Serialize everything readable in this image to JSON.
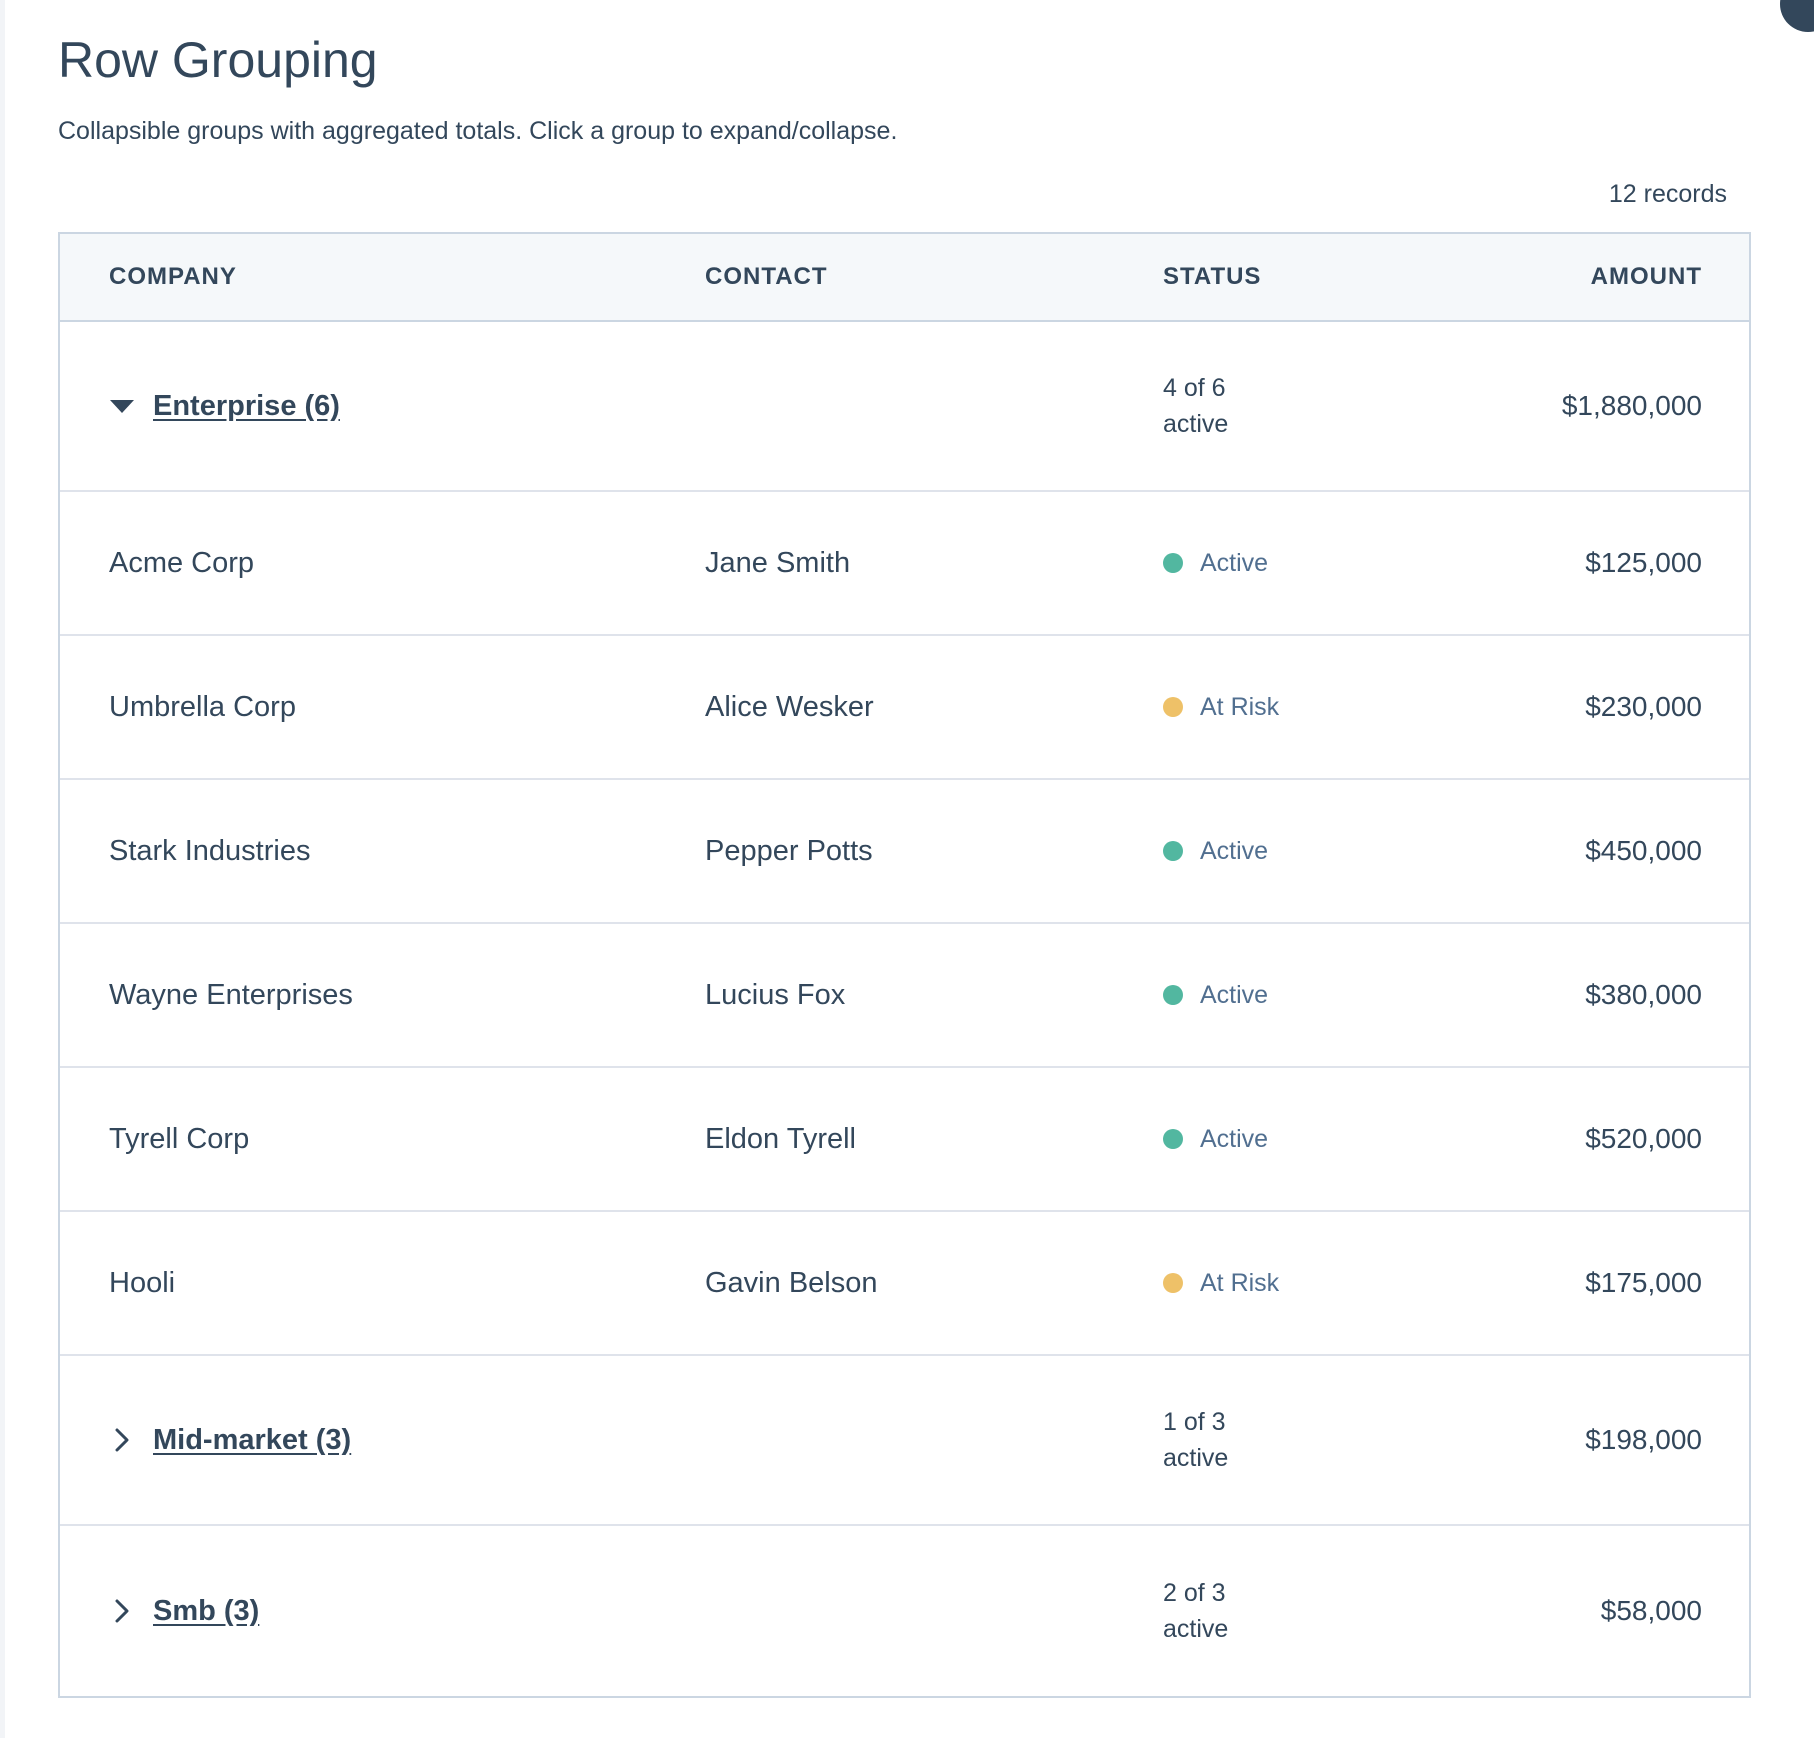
{
  "header": {
    "title": "Row Grouping",
    "subtitle": "Collapsible groups with aggregated totals. Click a group to expand/collapse.",
    "record_count": "12 records"
  },
  "colors": {
    "text": "#33475b",
    "status_text": "#516f90",
    "active": "#52b7a0",
    "at_risk": "#eec168",
    "border": "#cbd6e2",
    "header_bg": "#f5f8fa"
  },
  "table": {
    "columns": {
      "company": "COMPANY",
      "contact": "CONTACT",
      "status": "STATUS",
      "amount": "AMOUNT"
    },
    "groups": [
      {
        "label": "Enterprise (6)",
        "expanded": true,
        "toggle_icon": "caret-down-icon",
        "status_summary_line1": "4 of 6",
        "status_summary_line2": "active",
        "amount": "$1,880,000",
        "rows": [
          {
            "company": "Acme Corp",
            "contact": "Jane Smith",
            "status": "Active",
            "status_kind": "active",
            "amount": "$125,000"
          },
          {
            "company": "Umbrella Corp",
            "contact": "Alice Wesker",
            "status": "At Risk",
            "status_kind": "at_risk",
            "amount": "$230,000"
          },
          {
            "company": "Stark Industries",
            "contact": "Pepper Potts",
            "status": "Active",
            "status_kind": "active",
            "amount": "$450,000"
          },
          {
            "company": "Wayne Enterprises",
            "contact": "Lucius Fox",
            "status": "Active",
            "status_kind": "active",
            "amount": "$380,000"
          },
          {
            "company": "Tyrell Corp",
            "contact": "Eldon Tyrell",
            "status": "Active",
            "status_kind": "active",
            "amount": "$520,000"
          },
          {
            "company": "Hooli",
            "contact": "Gavin Belson",
            "status": "At Risk",
            "status_kind": "at_risk",
            "amount": "$175,000"
          }
        ]
      },
      {
        "label": "Mid-market (3)",
        "expanded": false,
        "toggle_icon": "chevron-right-icon",
        "status_summary_line1": "1 of 3",
        "status_summary_line2": "active",
        "amount": "$198,000",
        "rows": []
      },
      {
        "label": "Smb (3)",
        "expanded": false,
        "toggle_icon": "chevron-right-icon",
        "status_summary_line1": "2 of 3",
        "status_summary_line2": "active",
        "amount": "$58,000",
        "rows": []
      }
    ]
  }
}
